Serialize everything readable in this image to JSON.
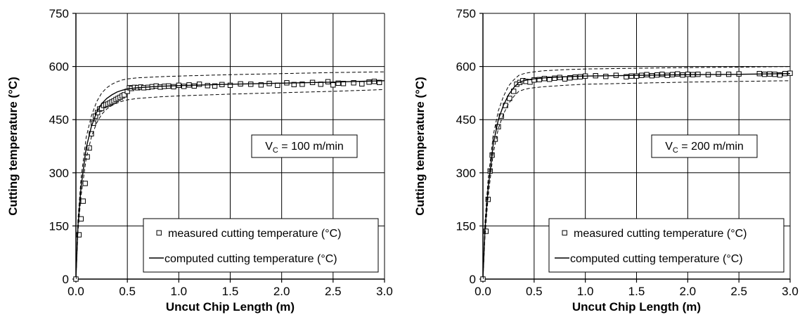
{
  "chart_data": [
    {
      "type": "scatter",
      "xlabel": "Uncut Chip Length (m)",
      "ylabel": "Cutting temperature (°C)",
      "xlim": [
        0,
        3.0
      ],
      "ylim": [
        0,
        750
      ],
      "xticks": [
        "0.0",
        "0.5",
        "1.0",
        "1.5",
        "2.0",
        "2.5",
        "3.0"
      ],
      "yticks": [
        "0",
        "150",
        "300",
        "450",
        "600",
        "750"
      ],
      "grid": true,
      "annotation": {
        "main": "V",
        "sub": "C",
        "rest": " = 100 m/min"
      },
      "legend": {
        "position": "bottom-right",
        "entries": [
          "measured cutting temperature (°C)",
          "computed cutting temperature (°C)"
        ]
      },
      "series": [
        {
          "name": "measured cutting temperature (°C)",
          "marker": "open-square",
          "x": [
            0.0,
            0.03,
            0.05,
            0.07,
            0.09,
            0.11,
            0.13,
            0.15,
            0.17,
            0.19,
            0.21,
            0.23,
            0.25,
            0.27,
            0.29,
            0.31,
            0.33,
            0.35,
            0.37,
            0.39,
            0.41,
            0.43,
            0.45,
            0.47,
            0.5,
            0.52,
            0.54,
            0.57,
            0.6,
            0.63,
            0.66,
            0.7,
            0.74,
            0.78,
            0.82,
            0.86,
            0.9,
            0.95,
            1.0,
            1.05,
            1.1,
            1.15,
            1.2,
            1.28,
            1.35,
            1.42,
            1.5,
            1.6,
            1.7,
            1.8,
            1.88,
            1.96,
            2.05,
            2.12,
            2.2,
            2.3,
            2.38,
            2.45,
            2.5,
            2.55,
            2.6,
            2.7,
            2.78,
            2.85,
            2.9,
            2.95
          ],
          "y": [
            0,
            125,
            170,
            220,
            270,
            345,
            370,
            410,
            440,
            460,
            470,
            480,
            482,
            490,
            492,
            494,
            497,
            500,
            503,
            507,
            510,
            513,
            517,
            520,
            530,
            540,
            538,
            541,
            540,
            542,
            540,
            541,
            543,
            545,
            542,
            544,
            545,
            543,
            547,
            544,
            548,
            545,
            550,
            546,
            545,
            549,
            547,
            551,
            550,
            548,
            552,
            547,
            554,
            549,
            550,
            555,
            550,
            557,
            548,
            553,
            552,
            554,
            551,
            556,
            558,
            555
          ]
        },
        {
          "name": "computed cutting temperature (°C)",
          "line": "solid",
          "x": [
            0.0,
            0.02,
            0.05,
            0.1,
            0.15,
            0.2,
            0.25,
            0.3,
            0.35,
            0.4,
            0.45,
            0.5,
            0.6,
            0.8,
            1.0,
            1.5,
            2.0,
            2.5,
            3.0
          ],
          "y": [
            0,
            150,
            260,
            370,
            430,
            470,
            495,
            510,
            520,
            528,
            533,
            537,
            540,
            544,
            546,
            550,
            553,
            556,
            560
          ]
        },
        {
          "line": "dashed-upper",
          "x": [
            0.0,
            0.02,
            0.05,
            0.1,
            0.15,
            0.2,
            0.25,
            0.3,
            0.35,
            0.4,
            0.45,
            0.5,
            0.6,
            0.8,
            1.0,
            1.5,
            2.0,
            2.5,
            3.0
          ],
          "y": [
            0,
            168,
            285,
            400,
            460,
            500,
            525,
            540,
            550,
            557,
            562,
            565,
            568,
            571,
            573,
            577,
            580,
            583,
            585
          ]
        },
        {
          "line": "dashed-lower",
          "x": [
            0.0,
            0.02,
            0.05,
            0.1,
            0.15,
            0.2,
            0.25,
            0.3,
            0.35,
            0.4,
            0.45,
            0.5,
            0.6,
            0.8,
            1.0,
            1.5,
            2.0,
            2.5,
            3.0
          ],
          "y": [
            0,
            135,
            235,
            340,
            400,
            440,
            465,
            480,
            490,
            497,
            502,
            506,
            510,
            514,
            517,
            522,
            526,
            530,
            535
          ]
        }
      ]
    },
    {
      "type": "scatter",
      "xlabel": "Uncut Chip Length (m)",
      "ylabel": "Cutting temperature (°C)",
      "xlim": [
        0,
        3.0
      ],
      "ylim": [
        0,
        750
      ],
      "xticks": [
        "0.0",
        "0.5",
        "1.0",
        "1.5",
        "2.0",
        "2.5",
        "3.0"
      ],
      "yticks": [
        "0",
        "150",
        "300",
        "450",
        "600",
        "750"
      ],
      "grid": true,
      "annotation": {
        "main": "V",
        "sub": "C",
        "rest": " = 200 m/min"
      },
      "legend": {
        "position": "bottom-right",
        "entries": [
          "measured cutting temperature (°C)",
          "computed cutting temperature (°C)"
        ]
      },
      "series": [
        {
          "name": "measured cutting temperature (°C)",
          "marker": "open-square",
          "x": [
            0.0,
            0.03,
            0.05,
            0.07,
            0.09,
            0.12,
            0.15,
            0.18,
            0.22,
            0.26,
            0.3,
            0.33,
            0.36,
            0.39,
            0.42,
            0.46,
            0.5,
            0.55,
            0.6,
            0.65,
            0.7,
            0.75,
            0.8,
            0.85,
            0.9,
            0.95,
            1.0,
            1.1,
            1.2,
            1.3,
            1.4,
            1.45,
            1.5,
            1.55,
            1.6,
            1.65,
            1.7,
            1.75,
            1.8,
            1.85,
            1.9,
            1.95,
            2.0,
            2.05,
            2.1,
            2.2,
            2.3,
            2.4,
            2.5,
            2.7,
            2.75,
            2.8,
            2.85,
            2.9,
            2.95,
            3.0
          ],
          "y": [
            0,
            135,
            225,
            305,
            350,
            395,
            430,
            460,
            490,
            510,
            530,
            550,
            555,
            560,
            558,
            556,
            562,
            563,
            566,
            564,
            567,
            569,
            565,
            568,
            570,
            571,
            573,
            574,
            572,
            575,
            571,
            573,
            573,
            575,
            577,
            574,
            576,
            578,
            575,
            577,
            579,
            576,
            578,
            577,
            578,
            577,
            579,
            578,
            579,
            580,
            578,
            579,
            578,
            576,
            580,
            581
          ]
        },
        {
          "name": "computed cutting temperature (°C)",
          "line": "solid",
          "x": [
            0.0,
            0.02,
            0.05,
            0.1,
            0.15,
            0.2,
            0.25,
            0.3,
            0.35,
            0.4,
            0.45,
            0.5,
            0.6,
            0.8,
            1.0,
            1.5,
            2.0,
            2.5,
            3.0
          ],
          "y": [
            0,
            140,
            255,
            380,
            450,
            490,
            520,
            540,
            555,
            560,
            563,
            565,
            568,
            571,
            573,
            575,
            577,
            578,
            580
          ]
        },
        {
          "line": "dashed-upper",
          "x": [
            0.0,
            0.02,
            0.05,
            0.1,
            0.15,
            0.2,
            0.25,
            0.3,
            0.35,
            0.4,
            0.45,
            0.5,
            0.6,
            0.8,
            1.0,
            1.5,
            2.0,
            2.5,
            3.0
          ],
          "y": [
            0,
            160,
            280,
            405,
            475,
            515,
            545,
            562,
            575,
            580,
            583,
            585,
            588,
            591,
            593,
            595,
            597,
            598,
            600
          ]
        },
        {
          "line": "dashed-lower",
          "x": [
            0.0,
            0.02,
            0.05,
            0.1,
            0.15,
            0.2,
            0.25,
            0.3,
            0.35,
            0.4,
            0.45,
            0.5,
            0.6,
            0.8,
            1.0,
            1.5,
            2.0,
            2.5,
            3.0
          ],
          "y": [
            0,
            120,
            230,
            355,
            425,
            465,
            495,
            515,
            530,
            535,
            538,
            540,
            543,
            547,
            550,
            553,
            556,
            558,
            560
          ]
        }
      ]
    }
  ]
}
